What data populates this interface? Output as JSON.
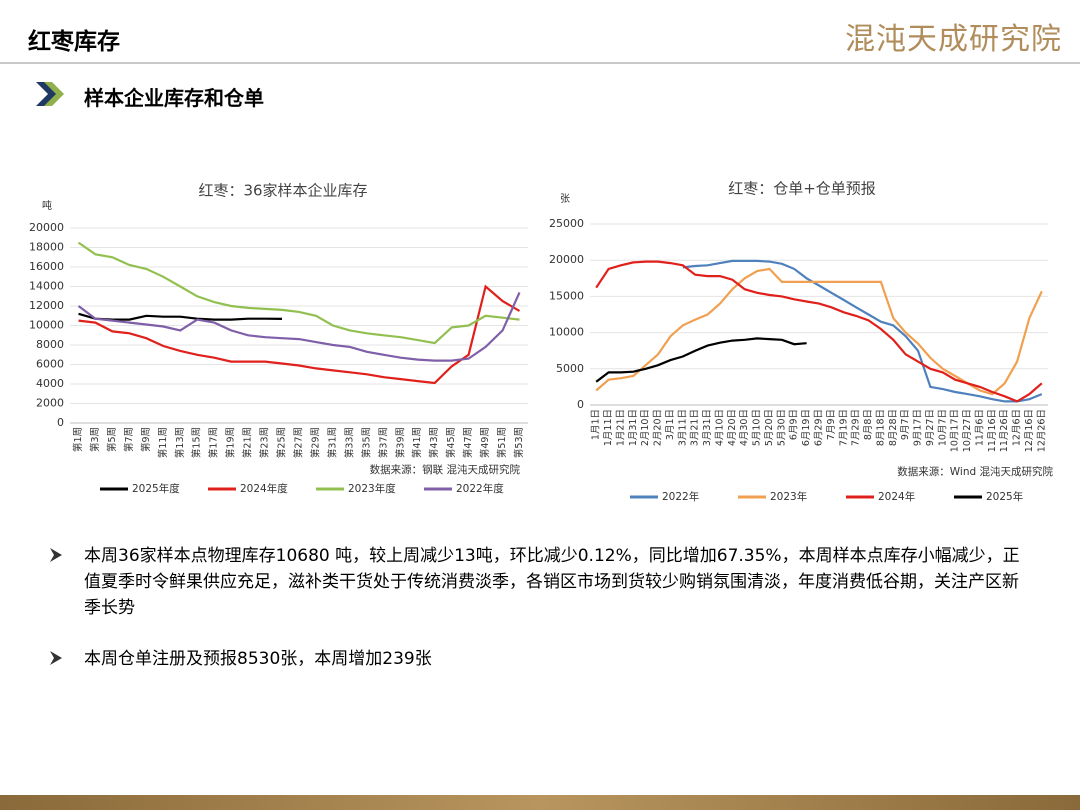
{
  "header": {
    "title": "红枣库存",
    "logo": "混沌天成研究院"
  },
  "subtitle": "样本企业库存和仓单",
  "chart_data": [
    {
      "type": "line",
      "title": "红枣：36家样本企业库存",
      "y_label": "吨",
      "source": "数据来源：钢联  混沌天成研究院",
      "categories": [
        "第1周",
        "第3周",
        "第5周",
        "第7周",
        "第9周",
        "第11周",
        "第13周",
        "第15周",
        "第17周",
        "第19周",
        "第21周",
        "第23周",
        "第25周",
        "第27周",
        "第29周",
        "第31周",
        "第33周",
        "第35周",
        "第37周",
        "第39周",
        "第41周",
        "第43周",
        "第45周",
        "第47周",
        "第49周",
        "第51周",
        "第53周"
      ],
      "ylim": [
        0,
        20000
      ],
      "yticks": [
        0,
        2000,
        4000,
        6000,
        8000,
        10000,
        12000,
        14000,
        16000,
        18000,
        20000
      ],
      "series": [
        {
          "name": "2025年度",
          "color": "#000000",
          "values": [
            11200,
            10700,
            10600,
            10600,
            11000,
            10900,
            10900,
            10700,
            10600,
            10600,
            10700,
            10700,
            10680,
            null,
            null,
            null,
            null,
            null,
            null,
            null,
            null,
            null,
            null,
            null,
            null,
            null,
            null
          ]
        },
        {
          "name": "2024年度",
          "color": "#e0201b",
          "values": [
            10500,
            10300,
            9400,
            9200,
            8700,
            7900,
            7400,
            7000,
            6700,
            6300,
            6300,
            6300,
            6100,
            5900,
            5600,
            5400,
            5200,
            5000,
            4700,
            4500,
            4300,
            4100,
            5800,
            7000,
            14000,
            12500,
            11500
          ]
        },
        {
          "name": "2023年度",
          "color": "#92c050",
          "values": [
            18500,
            17300,
            17000,
            16200,
            15800,
            15000,
            14000,
            13000,
            12400,
            12000,
            11800,
            11700,
            11600,
            11400,
            11000,
            10000,
            9500,
            9200,
            9000,
            8800,
            8500,
            8200,
            9800,
            10000,
            11000,
            10800,
            10600
          ]
        },
        {
          "name": "2022年度",
          "color": "#7f5fa8",
          "values": [
            12000,
            10700,
            10500,
            10300,
            10100,
            9900,
            9500,
            10600,
            10300,
            9500,
            9000,
            8800,
            8700,
            8600,
            8300,
            8000,
            7800,
            7300,
            7000,
            6700,
            6500,
            6400,
            6400,
            6600,
            7800,
            9500,
            13400
          ]
        }
      ]
    },
    {
      "type": "line",
      "title": "红枣：仓单+仓单预报",
      "y_label": "张",
      "source": "数据来源：Wind  混沌天成研究院",
      "categories": [
        "1月1日",
        "1月11日",
        "1月21日",
        "1月31日",
        "2月10日",
        "2月20日",
        "3月1日",
        "3月11日",
        "3月21日",
        "3月31日",
        "4月10日",
        "4月20日",
        "4月30日",
        "5月10日",
        "5月20日",
        "5月30日",
        "6月9日",
        "6月19日",
        "6月29日",
        "7月9日",
        "7月19日",
        "7月29日",
        "8月8日",
        "8月18日",
        "8月28日",
        "9月7日",
        "9月17日",
        "9月27日",
        "10月7日",
        "10月17日",
        "10月27日",
        "11月6日",
        "11月16日",
        "11月26日",
        "12月6日",
        "12月16日",
        "12月26日"
      ],
      "ylim": [
        0,
        25000
      ],
      "yticks": [
        0,
        5000,
        10000,
        15000,
        20000,
        25000
      ],
      "series": [
        {
          "name": "2022年",
          "color": "#4f81bd",
          "values": [
            null,
            null,
            null,
            null,
            null,
            null,
            null,
            19000,
            19200,
            19300,
            19600,
            19900,
            19900,
            19900,
            19800,
            19500,
            18800,
            17500,
            16500,
            15500,
            14500,
            13500,
            12500,
            11500,
            11000,
            9500,
            7500,
            2500,
            2200,
            1800,
            1500,
            1200,
            800,
            500,
            500,
            800,
            1500
          ]
        },
        {
          "name": "2023年",
          "color": "#f0a050",
          "values": [
            2000,
            3500,
            3700,
            4000,
            5500,
            7000,
            9500,
            11000,
            11800,
            12500,
            14000,
            16000,
            17500,
            18500,
            18800,
            17000,
            17000,
            17000,
            17000,
            17000,
            17000,
            17000,
            17000,
            17000,
            12000,
            10000,
            8500,
            6500,
            5000,
            4000,
            3000,
            2000,
            1500,
            3000,
            6000,
            12000,
            15700
          ]
        },
        {
          "name": "2024年",
          "color": "#e0201b",
          "values": [
            16200,
            18800,
            19300,
            19700,
            19800,
            19800,
            19600,
            19300,
            18000,
            17800,
            17800,
            17300,
            16000,
            15500,
            15200,
            15000,
            14600,
            14300,
            14000,
            13500,
            12800,
            12300,
            11700,
            10500,
            9000,
            7000,
            6000,
            5000,
            4500,
            3500,
            3000,
            2500,
            1800,
            1200,
            500,
            1500,
            3000
          ]
        },
        {
          "name": "2025年",
          "color": "#000000",
          "values": [
            3200,
            4500,
            4500,
            4600,
            5000,
            5500,
            6200,
            6700,
            7500,
            8200,
            8600,
            8900,
            9000,
            9200,
            9100,
            9000,
            8400,
            8530,
            null,
            null,
            null,
            null,
            null,
            null,
            null,
            null,
            null,
            null,
            null,
            null,
            null,
            null,
            null,
            null,
            null,
            null,
            null
          ]
        }
      ]
    }
  ],
  "notes": [
    "本周36家样本点物理库存10680 吨，较上周减少13吨，环比减少0.12%，同比增加67.35%，本周样本点库存小幅减少，正值夏季时令鲜果供应充足，滋补类干货处于传统消费淡季，各销区市场到货较少购销氛围清淡，年度消费低谷期，关注产区新季长势",
    "本周仓单注册及预报8530张，本周增加239张"
  ]
}
